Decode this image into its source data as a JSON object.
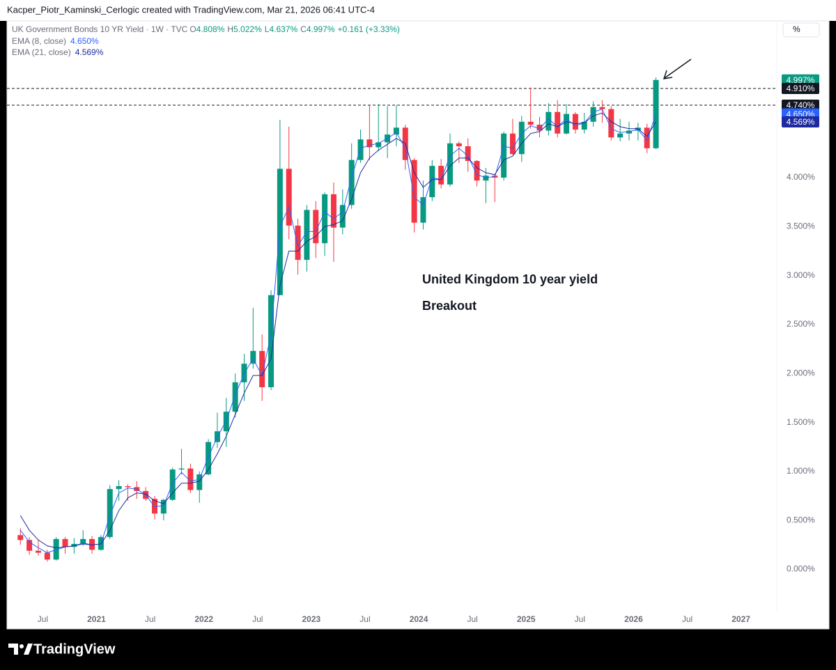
{
  "header": {
    "text": "Kacper_Piotr_Kaminski_Cerlogic created with TradingView.com, Mar 21, 2026 06:41 UTC-4"
  },
  "footer": {
    "brand": "TradingView"
  },
  "toolbar": {
    "percent_button": "%"
  },
  "chart_data": {
    "type": "candlestick",
    "symbol": "UK Government Bonds 10 YR Yield · 1W · TVC",
    "ohlc_legend": [
      {
        "key": "O",
        "text": "4.808%"
      },
      {
        "key": "H",
        "text": "5.022%"
      },
      {
        "key": "L",
        "text": "4.637%"
      },
      {
        "key": "C",
        "text": "4.997%"
      }
    ],
    "change": "+0.161 (+3.33%)",
    "x": [
      "2020-04",
      "2020-05",
      "2020-06",
      "2020-07",
      "2020-08",
      "2020-09",
      "2020-10",
      "2020-11",
      "2020-12",
      "2021-01",
      "2021-02",
      "2021-03",
      "2021-04",
      "2021-05",
      "2021-06",
      "2021-07",
      "2021-08",
      "2021-09",
      "2021-10",
      "2021-11",
      "2021-12",
      "2022-01",
      "2022-02",
      "2022-03",
      "2022-04",
      "2022-05",
      "2022-06",
      "2022-07",
      "2022-08",
      "2022-09",
      "2022-10",
      "2022-11",
      "2022-12",
      "2023-01",
      "2023-02",
      "2023-03",
      "2023-04",
      "2023-05",
      "2023-06",
      "2023-07",
      "2023-08",
      "2023-09",
      "2023-10",
      "2023-11",
      "2023-12",
      "2024-01",
      "2024-02",
      "2024-03",
      "2024-04",
      "2024-05",
      "2024-06",
      "2024-07",
      "2024-08",
      "2024-09",
      "2024-10",
      "2024-11",
      "2024-12",
      "2025-01",
      "2025-02",
      "2025-03",
      "2025-04",
      "2025-05",
      "2025-06",
      "2025-07",
      "2025-08",
      "2025-09",
      "2025-10",
      "2025-11",
      "2025-12",
      "2026-01",
      "2026-02",
      "2026-03"
    ],
    "open": [
      0.35,
      0.3,
      0.19,
      0.17,
      0.1,
      0.31,
      0.23,
      0.26,
      0.31,
      0.2,
      0.33,
      0.82,
      0.85,
      0.84,
      0.8,
      0.72,
      0.57,
      0.71,
      1.02,
      1.03,
      0.81,
      0.97,
      1.3,
      1.41,
      1.61,
      1.91,
      2.1,
      2.23,
      1.86,
      2.8,
      4.09,
      3.51,
      3.16,
      3.67,
      3.33,
      3.83,
      3.49,
      3.72,
      4.18,
      4.39,
      4.31,
      4.36,
      4.44,
      4.51,
      4.18,
      3.54,
      3.8,
      4.12,
      3.93,
      4.35,
      4.32,
      4.17,
      3.97,
      4.02,
      4.0,
      4.45,
      4.24,
      4.57,
      4.54,
      4.48,
      4.67,
      4.45,
      4.65,
      4.49,
      4.57,
      4.72,
      4.7,
      4.41,
      4.45,
      4.48,
      4.51,
      4.3
    ],
    "high": [
      0.42,
      0.33,
      0.3,
      0.2,
      0.33,
      0.33,
      0.32,
      0.4,
      0.34,
      0.35,
      0.86,
      0.91,
      0.87,
      0.9,
      0.84,
      0.75,
      0.72,
      1.04,
      1.23,
      1.08,
      1.0,
      1.33,
      1.6,
      1.75,
      2.0,
      2.2,
      2.67,
      2.4,
      2.85,
      4.59,
      4.52,
      3.58,
      3.72,
      3.76,
      3.85,
      3.95,
      3.88,
      4.35,
      4.49,
      4.74,
      4.75,
      4.73,
      4.74,
      4.54,
      4.2,
      3.97,
      4.18,
      4.19,
      4.45,
      4.37,
      4.4,
      4.18,
      4.1,
      4.04,
      4.47,
      4.6,
      4.63,
      4.92,
      4.62,
      4.76,
      4.79,
      4.75,
      4.67,
      4.66,
      4.78,
      4.79,
      4.73,
      4.6,
      4.57,
      4.56,
      4.55,
      5.022
    ],
    "low": [
      0.25,
      0.15,
      0.14,
      0.08,
      0.09,
      0.16,
      0.16,
      0.24,
      0.16,
      0.19,
      0.31,
      0.7,
      0.7,
      0.72,
      0.7,
      0.51,
      0.5,
      0.7,
      0.97,
      0.78,
      0.68,
      0.96,
      1.24,
      1.25,
      1.55,
      1.72,
      2.05,
      1.72,
      1.83,
      2.8,
      3.37,
      3.01,
      3.04,
      3.18,
      3.2,
      3.14,
      3.42,
      3.68,
      4.15,
      4.18,
      4.27,
      4.2,
      4.32,
      4.08,
      3.44,
      3.47,
      3.76,
      3.89,
      3.91,
      4.15,
      4.06,
      3.91,
      3.74,
      3.75,
      3.97,
      4.23,
      4.16,
      4.5,
      4.41,
      4.43,
      4.41,
      4.44,
      4.45,
      4.45,
      4.52,
      4.56,
      4.38,
      4.37,
      4.38,
      4.38,
      4.25,
      4.29
    ],
    "close": [
      0.3,
      0.19,
      0.17,
      0.1,
      0.31,
      0.23,
      0.26,
      0.31,
      0.2,
      0.33,
      0.82,
      0.85,
      0.84,
      0.8,
      0.72,
      0.57,
      0.71,
      1.02,
      1.03,
      0.81,
      0.97,
      1.3,
      1.41,
      1.61,
      1.91,
      2.1,
      2.23,
      1.86,
      2.8,
      4.09,
      3.51,
      3.16,
      3.67,
      3.33,
      3.83,
      3.49,
      3.72,
      4.18,
      4.39,
      4.31,
      4.36,
      4.44,
      4.51,
      4.18,
      3.54,
      3.8,
      4.12,
      3.93,
      4.35,
      4.32,
      4.17,
      3.97,
      4.02,
      4.0,
      4.45,
      4.24,
      4.57,
      4.54,
      4.48,
      4.67,
      4.45,
      4.65,
      4.49,
      4.57,
      4.72,
      4.7,
      4.41,
      4.45,
      4.48,
      4.51,
      4.3,
      4.997
    ],
    "up_color": "#089981",
    "down_color": "#f23645",
    "series": [
      {
        "name": "EMA (8, close)",
        "color": "#2962ff",
        "last_label": "4.650%",
        "values": [
          0.4,
          0.28,
          0.22,
          0.17,
          0.2,
          0.23,
          0.24,
          0.27,
          0.25,
          0.26,
          0.55,
          0.78,
          0.83,
          0.82,
          0.76,
          0.64,
          0.65,
          0.88,
          0.99,
          0.9,
          0.92,
          1.15,
          1.35,
          1.52,
          1.78,
          2.0,
          2.15,
          1.98,
          2.4,
          3.5,
          3.7,
          3.3,
          3.45,
          3.45,
          3.65,
          3.58,
          3.65,
          4.0,
          4.3,
          4.33,
          4.35,
          4.4,
          4.46,
          4.3,
          3.8,
          3.72,
          4.0,
          3.98,
          4.22,
          4.3,
          4.22,
          4.03,
          4.0,
          4.01,
          4.32,
          4.3,
          4.45,
          4.53,
          4.5,
          4.6,
          4.52,
          4.6,
          4.53,
          4.56,
          4.67,
          4.7,
          4.5,
          4.46,
          4.47,
          4.49,
          4.38,
          4.65
        ]
      },
      {
        "name": "EMA (21, close)",
        "color": "#1e2a9e",
        "last_label": "4.569%",
        "values": [
          0.55,
          0.4,
          0.3,
          0.24,
          0.22,
          0.23,
          0.24,
          0.26,
          0.25,
          0.26,
          0.4,
          0.6,
          0.73,
          0.78,
          0.77,
          0.7,
          0.67,
          0.78,
          0.88,
          0.88,
          0.9,
          1.02,
          1.18,
          1.36,
          1.58,
          1.8,
          1.98,
          1.98,
          2.15,
          2.9,
          3.25,
          3.25,
          3.35,
          3.4,
          3.5,
          3.52,
          3.56,
          3.78,
          4.05,
          4.2,
          4.28,
          4.34,
          4.4,
          4.35,
          4.05,
          3.9,
          3.98,
          3.98,
          4.12,
          4.2,
          4.2,
          4.1,
          4.05,
          4.03,
          4.18,
          4.22,
          4.35,
          4.45,
          4.47,
          4.55,
          4.52,
          4.57,
          4.55,
          4.56,
          4.63,
          4.66,
          4.57,
          4.52,
          4.5,
          4.5,
          4.42,
          4.569
        ]
      }
    ],
    "last_price": {
      "value": 4.997,
      "label": "4.997%"
    },
    "horizontal_lines": [
      {
        "value": 4.91,
        "label": "4.910%"
      },
      {
        "value": 4.74,
        "label": "4.740%"
      }
    ],
    "annotations": [
      "United Kingdom 10 year yield",
      "Breakout"
    ],
    "xlim": [
      "2020-03",
      "2027-05"
    ],
    "xticks": [
      {
        "value": "2020-07",
        "label": "Jul"
      },
      {
        "value": "2021-01",
        "label": "2021"
      },
      {
        "value": "2021-07",
        "label": "Jul"
      },
      {
        "value": "2022-01",
        "label": "2022"
      },
      {
        "value": "2022-07",
        "label": "Jul"
      },
      {
        "value": "2023-01",
        "label": "2023"
      },
      {
        "value": "2023-07",
        "label": "Jul"
      },
      {
        "value": "2024-01",
        "label": "2024"
      },
      {
        "value": "2024-07",
        "label": "Jul"
      },
      {
        "value": "2025-01",
        "label": "2025"
      },
      {
        "value": "2025-07",
        "label": "Jul"
      },
      {
        "value": "2026-01",
        "label": "2026"
      },
      {
        "value": "2026-07",
        "label": "Jul"
      },
      {
        "value": "2027-01",
        "label": "2027"
      }
    ],
    "ylim": [
      -0.43,
      5.6
    ],
    "yticks": [
      {
        "value": 0,
        "label": "0.000%"
      },
      {
        "value": 0.5,
        "label": "0.500%"
      },
      {
        "value": 1,
        "label": "1.000%"
      },
      {
        "value": 1.5,
        "label": "1.500%"
      },
      {
        "value": 2,
        "label": "2.000%"
      },
      {
        "value": 2.5,
        "label": "2.500%"
      },
      {
        "value": 3,
        "label": "3.000%"
      },
      {
        "value": 3.5,
        "label": "3.500%"
      },
      {
        "value": 4,
        "label": "4.000%"
      }
    ],
    "grid": false
  }
}
